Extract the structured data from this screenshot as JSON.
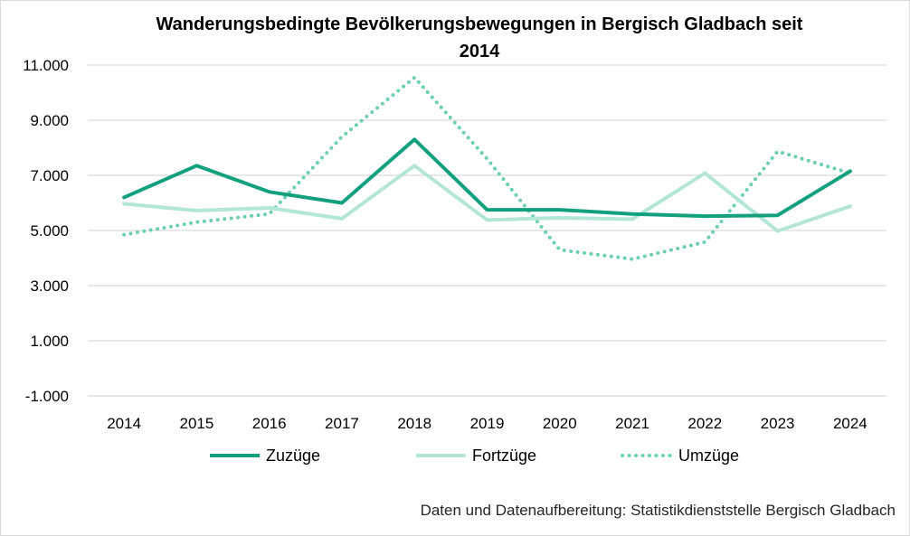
{
  "chart_data": {
    "type": "line",
    "title_line1": "Wanderungsbedingte Bevölkerungsbewegungen in Bergisch Gladbach seit",
    "title_line2": "2014",
    "categories": [
      "2014",
      "2015",
      "2016",
      "2017",
      "2018",
      "2019",
      "2020",
      "2021",
      "2022",
      "2023",
      "2024"
    ],
    "ylim": [
      -1000,
      11000
    ],
    "yticks": [
      -1000,
      1000,
      3000,
      5000,
      7000,
      9000,
      11000
    ],
    "ytick_labels": [
      "-1.000",
      "1.000",
      "3.000",
      "5.000",
      "7.000",
      "9.000",
      "11.000"
    ],
    "grid": true,
    "legend_position": "bottom",
    "series": [
      {
        "name": "Zuzüge",
        "style": "solid",
        "color": "#13a07f",
        "values": [
          6200,
          7350,
          6400,
          6000,
          8300,
          5750,
          5750,
          5600,
          5520,
          5550,
          7150
        ]
      },
      {
        "name": "Fortzüge",
        "style": "solid",
        "color": "#b3e6d7",
        "values": [
          5970,
          5720,
          5820,
          5430,
          7350,
          5380,
          5460,
          5410,
          7080,
          4980,
          5880
        ]
      },
      {
        "name": "Umzüge",
        "style": "dotted",
        "color": "#6ccfb1",
        "values": [
          4850,
          5300,
          5600,
          8400,
          10550,
          7600,
          4300,
          3960,
          4580,
          7870,
          7080
        ]
      }
    ],
    "source_note": "Daten und Datenaufbereitung: Statistikdienststelle Bergisch Gladbach"
  }
}
